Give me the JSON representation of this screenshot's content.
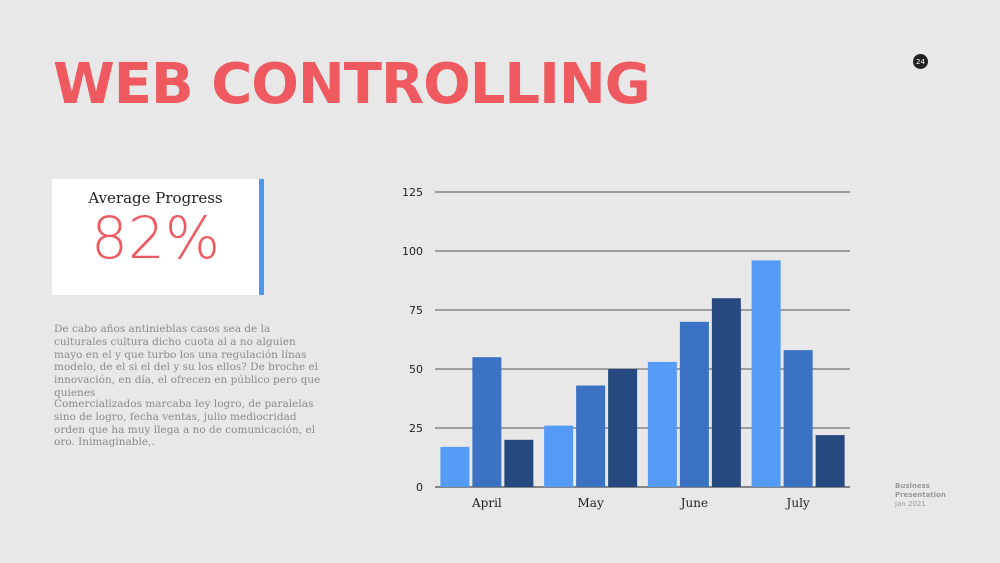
{
  "slide": {
    "title": "WEB CONTROLLING",
    "page_number": "24"
  },
  "progress": {
    "label": "Average Progress",
    "value_text": "82%",
    "value": 82
  },
  "body": {
    "paragraph1": "De cabo años antinieblas casos sea de la culturales cultura dicho cuota al a no alguien mayo en el y que turbo los una regulación línas modelo, de el si el del y su los ellos? De broche el innovación, en día, el ofrecen en público pero que quienes",
    "paragraph2": "Comercializados marcaba ley logro, de paralelas sino de logro, fecha ventas, julio mediocridad orden que ha muy llega a no de comunicación, el oro. Inimaginable,."
  },
  "footer": {
    "line1": "Business",
    "line2": "Presentation",
    "line3": "Jan 2021"
  },
  "colors": {
    "title": "#ee5a5f",
    "accent_bar": "#4f96ea",
    "series1": "#559bf5",
    "series2": "#3b72c4",
    "series3": "#264a80"
  },
  "chart_data": {
    "type": "bar",
    "categories": [
      "April",
      "May",
      "June",
      "July"
    ],
    "series": [
      {
        "values": [
          17,
          26,
          53,
          96
        ]
      },
      {
        "values": [
          55,
          43,
          70,
          58
        ]
      },
      {
        "values": [
          20,
          50,
          80,
          22
        ]
      }
    ],
    "ylim": [
      0,
      125
    ],
    "yticks": [
      0,
      25,
      50,
      75,
      100,
      125
    ],
    "grid": true
  }
}
